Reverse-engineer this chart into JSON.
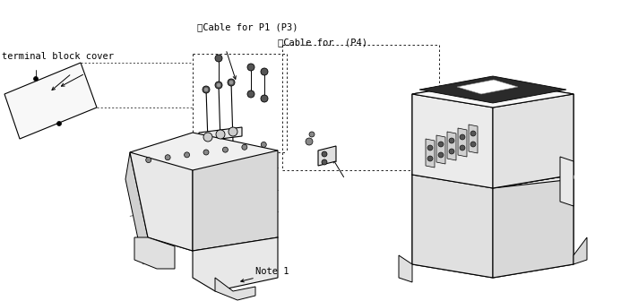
{
  "bg_color": "#ffffff",
  "fig_width": 6.93,
  "fig_height": 3.36,
  "dpi": 100,
  "labels": {
    "cable_p1_p3": "Cable for P1 (P3)",
    "cable_p4": "Cable for  (P4)",
    "terminal_cover": "terminal block cover",
    "note1": "Note 1"
  },
  "line_color": "#000000",
  "font_size": 7.5
}
